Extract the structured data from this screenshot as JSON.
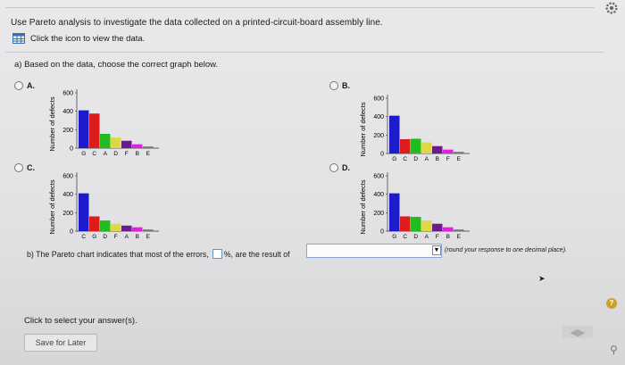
{
  "question": "Use Pareto analysis to investigate the data collected on a printed-circuit-board assembly line.",
  "data_link": {
    "label": "Click the icon to view the data.",
    "icon": "table-icon"
  },
  "part_a": {
    "label": "a) Based on the data, choose the correct graph below."
  },
  "options": [
    {
      "id": "A",
      "label": "A."
    },
    {
      "id": "B",
      "label": "B."
    },
    {
      "id": "C",
      "label": "C."
    },
    {
      "id": "D",
      "label": "D."
    }
  ],
  "charts": [
    {
      "option": "A",
      "ylabel": "Number of defects",
      "ticks": [
        "600",
        "400",
        "200",
        "0"
      ],
      "categories": [
        "G",
        "C",
        "A",
        "D",
        "F",
        "B",
        "E"
      ],
      "values": [
        410,
        375,
        155,
        115,
        80,
        42,
        18
      ],
      "colors": [
        "#1c1ccc",
        "#dd1c1c",
        "#22bb22",
        "#ddd84a",
        "#6a1a8a",
        "#dd22dd",
        "#777777"
      ]
    },
    {
      "option": "B",
      "ylabel": "Number of defects",
      "ticks": [
        "600",
        "400",
        "200",
        "0"
      ],
      "categories": [
        "G",
        "C",
        "D",
        "A",
        "B",
        "F",
        "E"
      ],
      "values": [
        410,
        155,
        160,
        120,
        80,
        42,
        18
      ],
      "colors": [
        "#1c1ccc",
        "#dd1c1c",
        "#22bb22",
        "#ddd84a",
        "#6a1a8a",
        "#dd22dd",
        "#777777"
      ]
    },
    {
      "option": "C",
      "ylabel": "Number of defects",
      "ticks": [
        "600",
        "400",
        "200",
        "0"
      ],
      "categories": [
        "C",
        "G",
        "D",
        "F",
        "A",
        "B",
        "E"
      ],
      "values": [
        410,
        160,
        115,
        80,
        60,
        42,
        18
      ],
      "colors": [
        "#1c1ccc",
        "#dd1c1c",
        "#22bb22",
        "#ddd84a",
        "#6a1a8a",
        "#dd22dd",
        "#777777"
      ]
    },
    {
      "option": "D",
      "ylabel": "Number of defects",
      "ticks": [
        "600",
        "400",
        "200",
        "0"
      ],
      "categories": [
        "G",
        "C",
        "D",
        "A",
        "F",
        "B",
        "E"
      ],
      "values": [
        410,
        160,
        155,
        115,
        80,
        42,
        18
      ],
      "colors": [
        "#1c1ccc",
        "#dd1c1c",
        "#22bb22",
        "#ddd84a",
        "#6a1a8a",
        "#dd22dd",
        "#777777"
      ]
    }
  ],
  "part_b": {
    "prefix": "b) The Pareto chart indicates that most of the errors,",
    "suffix": "%, are the result of",
    "hint": "(round your response to one decimal place)."
  },
  "footer": {
    "click_select": "Click to select your answer(s).",
    "save_later": "Save for Later",
    "help": "?"
  }
}
